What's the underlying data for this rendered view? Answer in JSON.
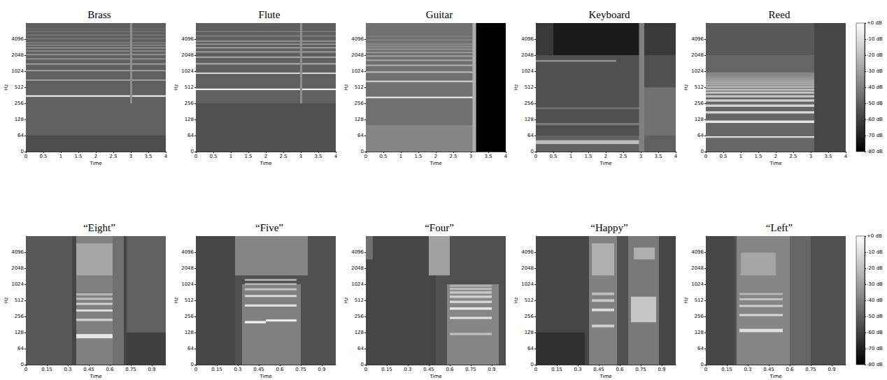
{
  "chart_data": [
    {
      "type": "heatmap",
      "title": "Brass",
      "xlabel": "Time",
      "ylabel": "Hz",
      "log": "y",
      "xlim": [
        0,
        4
      ],
      "xticks": [
        0,
        0.5,
        1,
        1.5,
        2,
        2.5,
        3,
        3.5,
        4
      ],
      "ylim": [
        0,
        8192
      ],
      "yticks": [
        0,
        64,
        128,
        256,
        512,
        1024,
        2048,
        4096
      ],
      "cells": [
        [
          0,
          4,
          0,
          8192,
          -50
        ],
        [
          0,
          4,
          0,
          64,
          -56
        ],
        [
          0,
          4,
          340,
          362,
          -3
        ],
        [
          0,
          4,
          685,
          715,
          -18
        ],
        [
          0,
          4,
          1030,
          1070,
          -20
        ],
        [
          0,
          4,
          1375,
          1425,
          -22
        ],
        [
          0,
          4,
          1720,
          1780,
          -24
        ],
        [
          0,
          4,
          2065,
          2135,
          -26
        ],
        [
          0,
          4,
          2410,
          2490,
          -27
        ],
        [
          0,
          4,
          2755,
          2845,
          -29
        ],
        [
          0,
          4,
          3100,
          3200,
          -30
        ],
        [
          0,
          4,
          3450,
          3550,
          -32
        ],
        [
          0,
          4,
          4150,
          4250,
          -34
        ],
        [
          0,
          4,
          4850,
          4950,
          -36
        ],
        [
          0,
          4,
          5550,
          5650,
          -38
        ],
        [
          0,
          4,
          6250,
          6350,
          -40
        ],
        [
          2.98,
          3.04,
          256,
          8192,
          -35
        ]
      ]
    },
    {
      "type": "heatmap",
      "title": "Flute",
      "xlabel": "Time",
      "ylabel": "Hz",
      "log": "y",
      "xlim": [
        0,
        4
      ],
      "xticks": [
        0,
        0.5,
        1,
        1.5,
        2,
        2.5,
        3,
        3.5,
        4
      ],
      "ylim": [
        0,
        8192
      ],
      "yticks": [
        0,
        64,
        128,
        256,
        512,
        1024,
        2048,
        4096
      ],
      "cells": [
        [
          0,
          4,
          0,
          8192,
          -50
        ],
        [
          0,
          4,
          0,
          256,
          -55
        ],
        [
          0,
          4,
          455,
          485,
          -5
        ],
        [
          0,
          4,
          910,
          970,
          -15
        ],
        [
          0,
          4,
          1370,
          1450,
          -22
        ],
        [
          0,
          4,
          1830,
          1930,
          -25
        ],
        [
          0,
          4,
          2290,
          2410,
          -27
        ],
        [
          0,
          4,
          2750,
          2890,
          -29
        ],
        [
          0,
          4,
          3210,
          3370,
          -31
        ],
        [
          0,
          4,
          3670,
          3850,
          -33
        ],
        [
          0,
          4,
          4600,
          4800,
          -36
        ],
        [
          0,
          4,
          5540,
          5740,
          -39
        ],
        [
          2.98,
          3.04,
          256,
          8192,
          -35
        ]
      ]
    },
    {
      "type": "heatmap",
      "title": "Guitar",
      "xlabel": "Time",
      "ylabel": "Hz",
      "log": "y",
      "xlim": [
        0,
        4
      ],
      "xticks": [
        0,
        0.5,
        1,
        1.5,
        2,
        2.5,
        3,
        3.5,
        4
      ],
      "ylim": [
        0,
        8192
      ],
      "yticks": [
        0,
        64,
        128,
        256,
        512,
        1024,
        2048,
        4096
      ],
      "cells": [
        [
          0,
          3.1,
          0,
          8192,
          -45
        ],
        [
          0,
          3.1,
          0,
          100,
          -38
        ],
        [
          0,
          3.1,
          320,
          340,
          -3
        ],
        [
          0,
          3.1,
          640,
          680,
          -12
        ],
        [
          0,
          3.1,
          960,
          1020,
          -20
        ],
        [
          0,
          3.1,
          1280,
          1360,
          -25
        ],
        [
          0,
          3.1,
          1600,
          1700,
          -27
        ],
        [
          0,
          3.1,
          1920,
          2040,
          -30
        ],
        [
          0,
          3.1,
          2240,
          2380,
          -32
        ],
        [
          0,
          3.1,
          2560,
          2720,
          -33
        ],
        [
          0,
          3.1,
          2880,
          3060,
          -35
        ],
        [
          0,
          3.1,
          3200,
          3400,
          -36
        ],
        [
          0,
          3.1,
          3860,
          4060,
          -38
        ],
        [
          0,
          3.1,
          4520,
          4720,
          -40
        ],
        [
          3.05,
          3.15,
          0,
          8192,
          -25
        ],
        [
          3.15,
          4,
          0,
          8192,
          -80
        ]
      ]
    },
    {
      "type": "heatmap",
      "title": "Keyboard",
      "xlabel": "Time",
      "ylabel": "Hz",
      "log": "y",
      "xlim": [
        0,
        4
      ],
      "xticks": [
        0,
        0.5,
        1,
        1.5,
        2,
        2.5,
        3,
        3.5,
        4
      ],
      "ylim": [
        0,
        8192
      ],
      "yticks": [
        0,
        64,
        128,
        256,
        512,
        1024,
        2048,
        4096
      ],
      "cells": [
        [
          0,
          4,
          0,
          8192,
          -55
        ],
        [
          0,
          4,
          0,
          64,
          -50
        ],
        [
          0,
          3,
          30,
          45,
          -20
        ],
        [
          0,
          4,
          2048,
          8192,
          -62
        ],
        [
          0.5,
          3,
          2048,
          8192,
          -72
        ],
        [
          0,
          2.3,
          1550,
          1650,
          -30
        ],
        [
          0,
          4,
          100,
          110,
          -42
        ],
        [
          0,
          4,
          200,
          215,
          -45
        ],
        [
          3.1,
          4,
          64,
          512,
          -45
        ],
        [
          2.95,
          3.1,
          0,
          8192,
          -40
        ]
      ]
    },
    {
      "type": "heatmap",
      "title": "Reed",
      "xlabel": "Time",
      "ylabel": "Hz",
      "log": "y",
      "xlim": [
        0,
        4
      ],
      "xticks": [
        0,
        0.5,
        1,
        1.5,
        2,
        2.5,
        3,
        3.5,
        4
      ],
      "ylim": [
        0,
        8192
      ],
      "yticks": [
        0,
        64,
        128,
        256,
        512,
        1024,
        2048,
        4096
      ],
      "cells": [
        [
          0,
          4,
          0,
          8192,
          -48
        ],
        [
          0,
          4,
          2048,
          8192,
          -52
        ],
        [
          3.1,
          4,
          0,
          8192,
          -58
        ],
        [
          0,
          3.1,
          55,
          61,
          -10
        ],
        [
          0,
          3.1,
          110,
          122,
          -8
        ],
        [
          0,
          3.1,
          165,
          183,
          -12
        ],
        [
          0,
          3.1,
          220,
          244,
          -14
        ],
        [
          0,
          3.1,
          276,
          304,
          -15
        ],
        [
          0,
          3.1,
          331,
          365,
          -18
        ],
        [
          0,
          3.1,
          386,
          426,
          -20
        ],
        [
          0,
          3.1,
          441,
          487,
          -22
        ],
        [
          0,
          3.1,
          496,
          548,
          -25
        ],
        [
          0,
          3.1,
          551,
          609,
          -27
        ],
        [
          0,
          3.1,
          606,
          670,
          -29
        ],
        [
          0,
          3.1,
          661,
          731,
          -31
        ],
        [
          0,
          3.1,
          716,
          792,
          -33
        ],
        [
          0,
          3.1,
          771,
          853,
          -35
        ],
        [
          0,
          3.1,
          827,
          913,
          -37
        ],
        [
          0,
          3.1,
          882,
          974,
          -38
        ]
      ],
      "colorbar": {
        "lim": [
          -80,
          0
        ],
        "ticks": [
          {
            "value": 0,
            "label": "+0 dB"
          },
          {
            "value": -10,
            "label": "-10 dB"
          },
          {
            "value": -20,
            "label": "-20 dB"
          },
          {
            "value": -30,
            "label": "-30 dB"
          },
          {
            "value": -40,
            "label": "-40 dB"
          },
          {
            "value": -50,
            "label": "-50 dB"
          },
          {
            "value": -60,
            "label": "-60 dB"
          },
          {
            "value": -70,
            "label": "-70 dB"
          },
          {
            "value": -80,
            "label": "-80 dB"
          }
        ]
      }
    },
    {
      "type": "heatmap",
      "title": "“Eight”",
      "xlabel": "Time",
      "ylabel": "Hz",
      "log": "y",
      "xlim": [
        0,
        1
      ],
      "xticks": [
        0,
        0.15,
        0.3,
        0.45,
        0.6,
        0.75,
        0.9
      ],
      "ylim": [
        0,
        8192
      ],
      "yticks": [
        0,
        64,
        128,
        256,
        512,
        1024,
        2048,
        4096
      ],
      "cells": [
        [
          0,
          1,
          0,
          8192,
          -58
        ],
        [
          0,
          0.33,
          0,
          8192,
          -52
        ],
        [
          0.36,
          0.7,
          0,
          8192,
          -40
        ],
        [
          0.36,
          0.62,
          1500,
          6000,
          -28
        ],
        [
          0.36,
          0.62,
          100,
          120,
          -8
        ],
        [
          0.36,
          0.62,
          210,
          232,
          -15
        ],
        [
          0.36,
          0.62,
          315,
          345,
          -10
        ],
        [
          0.36,
          0.62,
          420,
          460,
          -15
        ],
        [
          0.36,
          0.62,
          525,
          575,
          -20
        ],
        [
          0.36,
          0.62,
          630,
          690,
          -22
        ],
        [
          0.62,
          0.7,
          0,
          8192,
          -45
        ],
        [
          0.72,
          1,
          0,
          8192,
          -50
        ],
        [
          0.72,
          1,
          0,
          128,
          -60
        ]
      ]
    },
    {
      "type": "heatmap",
      "title": "“Five”",
      "xlabel": "Time",
      "ylabel": "Hz",
      "log": "y",
      "xlim": [
        0,
        1
      ],
      "xticks": [
        0,
        0.15,
        0.3,
        0.45,
        0.6,
        0.75,
        0.9
      ],
      "ylim": [
        0,
        8192
      ],
      "yticks": [
        0,
        64,
        128,
        256,
        512,
        1024,
        2048,
        4096
      ],
      "cells": [
        [
          0,
          1,
          0,
          8192,
          -55
        ],
        [
          0,
          0.28,
          0,
          8192,
          -58
        ],
        [
          0.28,
          0.8,
          1500,
          8192,
          -38
        ],
        [
          0.33,
          0.75,
          0,
          1024,
          -40
        ],
        [
          0.35,
          0.5,
          190,
          210,
          -5
        ],
        [
          0.5,
          0.72,
          205,
          225,
          -5
        ],
        [
          0.35,
          0.72,
          390,
          430,
          -10
        ],
        [
          0.35,
          0.72,
          590,
          645,
          -12
        ],
        [
          0.35,
          0.72,
          790,
          860,
          -18
        ],
        [
          0.35,
          0.72,
          990,
          1075,
          -22
        ],
        [
          0.35,
          0.72,
          1190,
          1290,
          -25
        ]
      ]
    },
    {
      "type": "heatmap",
      "title": "“Four”",
      "xlabel": "Time",
      "ylabel": "Hz",
      "log": "y",
      "xlim": [
        0,
        1
      ],
      "xticks": [
        0,
        0.15,
        0.3,
        0.45,
        0.6,
        0.75,
        0.9
      ],
      "ylim": [
        0,
        8192
      ],
      "yticks": [
        0,
        64,
        128,
        256,
        512,
        1024,
        2048,
        4096
      ],
      "cells": [
        [
          0,
          1,
          0,
          8192,
          -55
        ],
        [
          0,
          0.5,
          0,
          8192,
          -58
        ],
        [
          0,
          0.05,
          3000,
          8192,
          -45
        ],
        [
          0.45,
          0.6,
          1500,
          8192,
          -30
        ],
        [
          0.58,
          0.95,
          0,
          1024,
          -38
        ],
        [
          0.6,
          0.9,
          114,
          126,
          -20
        ],
        [
          0.6,
          0.9,
          228,
          252,
          -10
        ],
        [
          0.6,
          0.9,
          342,
          378,
          -8
        ],
        [
          0.6,
          0.9,
          456,
          504,
          -12
        ],
        [
          0.6,
          0.9,
          570,
          630,
          -15
        ],
        [
          0.6,
          0.9,
          684,
          756,
          -18
        ],
        [
          0.6,
          0.9,
          798,
          882,
          -22
        ],
        [
          0.6,
          0.9,
          912,
          1008,
          -25
        ]
      ]
    },
    {
      "type": "heatmap",
      "title": "“Happy”",
      "xlabel": "Time",
      "ylabel": "Hz",
      "log": "y",
      "xlim": [
        0,
        1
      ],
      "xticks": [
        0,
        0.15,
        0.3,
        0.45,
        0.6,
        0.75,
        0.9
      ],
      "ylim": [
        0,
        8192
      ],
      "yticks": [
        0,
        64,
        128,
        256,
        512,
        1024,
        2048,
        4096
      ],
      "cells": [
        [
          0,
          1,
          0,
          8192,
          -58
        ],
        [
          0,
          0.35,
          0,
          128,
          -65
        ],
        [
          0.38,
          0.58,
          0,
          8192,
          -40
        ],
        [
          0.4,
          0.56,
          1500,
          6000,
          -25
        ],
        [
          0.4,
          0.56,
          160,
          180,
          -15
        ],
        [
          0.4,
          0.56,
          320,
          360,
          -12
        ],
        [
          0.4,
          0.56,
          480,
          540,
          -18
        ],
        [
          0.4,
          0.56,
          640,
          720,
          -20
        ],
        [
          0.58,
          0.66,
          0,
          8192,
          -55
        ],
        [
          0.66,
          0.88,
          0,
          8192,
          -42
        ],
        [
          0.68,
          0.86,
          200,
          600,
          -18
        ],
        [
          0.7,
          0.85,
          3000,
          5000,
          -25
        ]
      ]
    },
    {
      "type": "heatmap",
      "title": "“Left”",
      "xlabel": "Time",
      "ylabel": "Hz",
      "log": "y",
      "xlim": [
        0,
        1
      ],
      "xticks": [
        0,
        0.15,
        0.3,
        0.45,
        0.6,
        0.75,
        0.9
      ],
      "ylim": [
        0,
        8192
      ],
      "yticks": [
        0,
        64,
        128,
        256,
        512,
        1024,
        2048,
        4096
      ],
      "cells": [
        [
          0,
          1,
          0,
          8192,
          -55
        ],
        [
          0,
          0.2,
          0,
          8192,
          -58
        ],
        [
          0.22,
          0.6,
          0,
          8192,
          -38
        ],
        [
          0.25,
          0.5,
          1500,
          4000,
          -28
        ],
        [
          0.24,
          0.55,
          130,
          150,
          -10
        ],
        [
          0.24,
          0.55,
          260,
          285,
          -12
        ],
        [
          0.24,
          0.55,
          385,
          420,
          -15
        ],
        [
          0.24,
          0.55,
          515,
          560,
          -18
        ],
        [
          0.24,
          0.55,
          645,
          700,
          -22
        ],
        [
          0.6,
          0.75,
          0,
          8192,
          -48
        ],
        [
          0.75,
          1,
          0,
          8192,
          -55
        ]
      ],
      "colorbar": {
        "lim": [
          -80,
          0
        ],
        "ticks": [
          {
            "value": 0,
            "label": "+0 dB"
          },
          {
            "value": -10,
            "label": "-10 dB"
          },
          {
            "value": -20,
            "label": "-20 dB"
          },
          {
            "value": -30,
            "label": "-30 dB"
          },
          {
            "value": -40,
            "label": "-40 dB"
          },
          {
            "value": -50,
            "label": "-50 dB"
          },
          {
            "value": -60,
            "label": "-60 dB"
          },
          {
            "value": -70,
            "label": "-70 dB"
          },
          {
            "value": -80,
            "label": "-80 dB"
          }
        ]
      }
    }
  ]
}
